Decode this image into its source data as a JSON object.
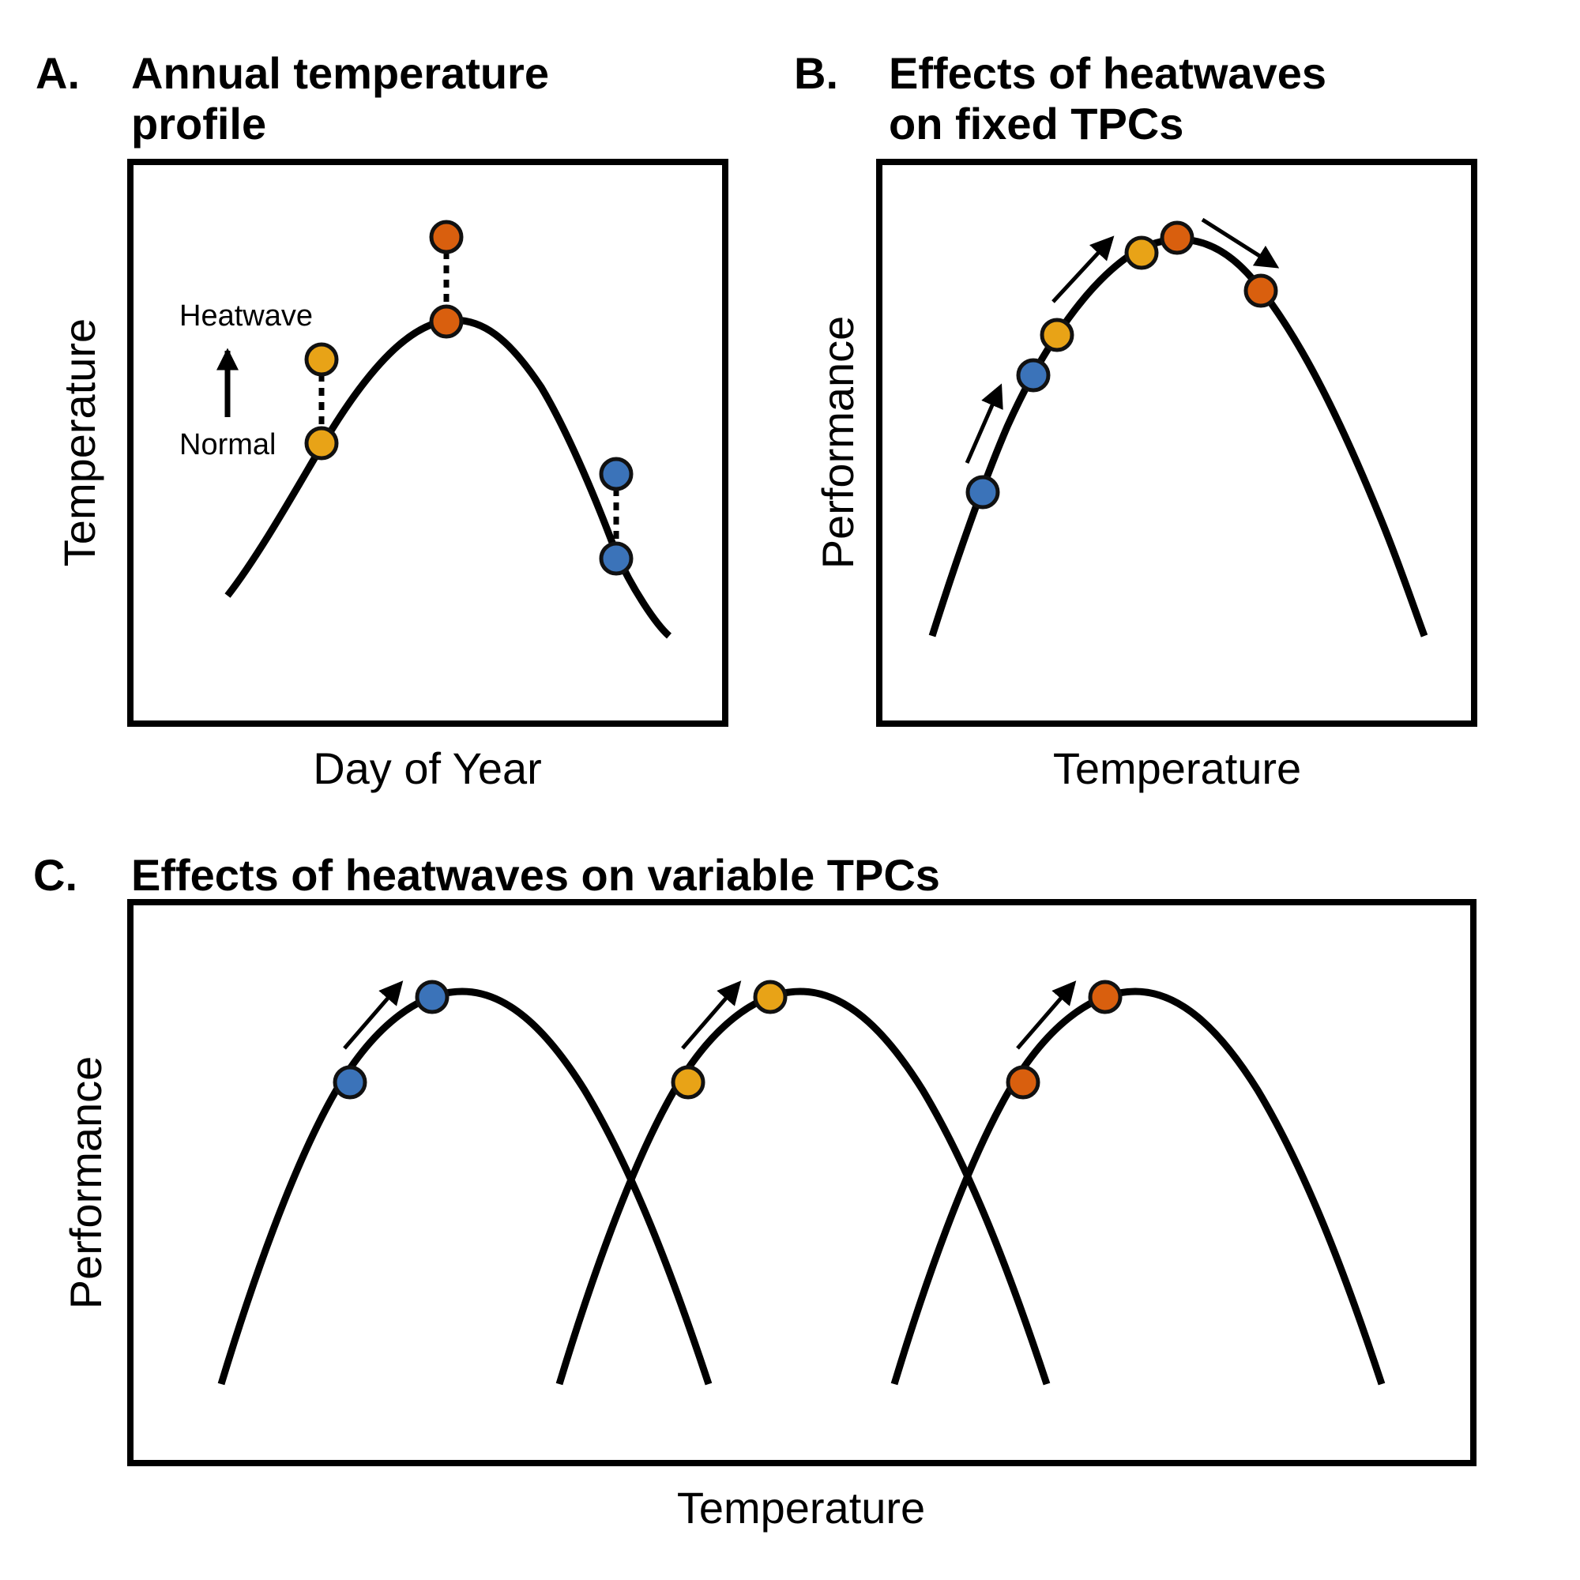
{
  "colors": {
    "blue": "#3b73b9",
    "yellow": "#e8a317",
    "orange": "#d95f0e",
    "ink": "#000000"
  },
  "panel_a": {
    "letter": "A.",
    "title_line1": "Annual temperature",
    "title_line2": "profile",
    "ylabel": "Temperature",
    "xlabel": "Day of Year",
    "legend_top": "Heatwave",
    "legend_bottom": "Normal"
  },
  "panel_b": {
    "letter": "B.",
    "title_line1": "Effects of heatwaves",
    "title_line2": "on fixed TPCs",
    "ylabel": "Performance",
    "xlabel": "Temperature"
  },
  "panel_c": {
    "letter": "C.",
    "title": "Effects of heatwaves on variable TPCs",
    "ylabel": "Performance",
    "xlabel": "Temperature"
  }
}
